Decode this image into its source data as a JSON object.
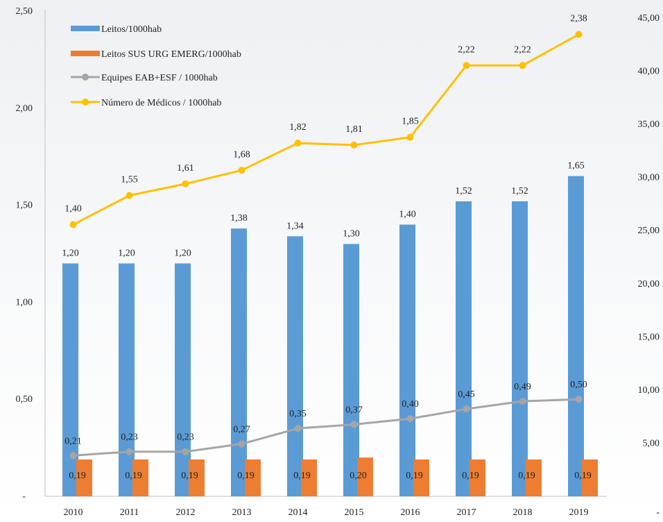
{
  "chart_data": {
    "type": "bar",
    "categories": [
      "2010",
      "2011",
      "2012",
      "2013",
      "2014",
      "2015",
      "2016",
      "2017",
      "2018",
      "2019"
    ],
    "y_left": {
      "ylim": [
        0,
        2.5
      ],
      "ticks": [
        0,
        0.5,
        1.0,
        1.5,
        2.0,
        2.5
      ],
      "tick_labels": [
        "-",
        "0,50",
        "1,00",
        "1,50",
        "2,00",
        "2,50"
      ]
    },
    "y_right": {
      "ylim": [
        0,
        45
      ],
      "ticks": [
        0,
        5,
        10,
        15,
        20,
        25,
        30,
        35,
        40,
        45
      ],
      "tick_labels": [
        "-",
        "5,00",
        "10,00",
        "15,00",
        "20,00",
        "25,00",
        "30,00",
        "35,00",
        "40,00",
        "45,00"
      ]
    },
    "series": [
      {
        "name": "Leitos/1000hab",
        "kind": "bar",
        "axis": "left",
        "color": "#5b9bd5",
        "values": [
          1.2,
          1.2,
          1.2,
          1.38,
          1.34,
          1.3,
          1.4,
          1.52,
          1.52,
          1.65
        ],
        "labels": [
          "1,20",
          "1,20",
          "1,20",
          "1,38",
          "1,34",
          "1,30",
          "1,40",
          "1,52",
          "1,52",
          "1,65"
        ]
      },
      {
        "name": "Leitos SUS URG EMERG/1000hab",
        "kind": "bar",
        "axis": "left",
        "color": "#ed7d31",
        "values": [
          0.19,
          0.19,
          0.19,
          0.19,
          0.19,
          0.2,
          0.19,
          0.19,
          0.19,
          0.19
        ],
        "labels": [
          "0,19",
          "0,19",
          "0,19",
          "0,19",
          "0,19",
          "0,20",
          "0,19",
          "0,19",
          "0,19",
          "0,19"
        ]
      },
      {
        "name": "Equipes EAB+ESF / 1000hab",
        "kind": "line",
        "axis": "left",
        "color": "#a5a5a5",
        "values": [
          0.21,
          0.23,
          0.23,
          0.27,
          0.35,
          0.37,
          0.4,
          0.45,
          0.49,
          0.5
        ],
        "labels": [
          "0,21",
          "0,23",
          "0,23",
          "0,27",
          "0,35",
          "0,37",
          "0,40",
          "0,45",
          "0,49",
          "0,50"
        ]
      },
      {
        "name": "Número de Médicos / 1000hab",
        "kind": "line",
        "axis": "left",
        "color": "#ffc000",
        "values": [
          1.4,
          1.55,
          1.61,
          1.68,
          1.82,
          1.81,
          1.85,
          2.22,
          2.22,
          2.38
        ],
        "labels": [
          "1,40",
          "1,55",
          "1,61",
          "1,68",
          "1,82",
          "1,81",
          "1,85",
          "2,22",
          "2,22",
          "2,38"
        ]
      }
    ],
    "legend_position": "top-left",
    "grid": false
  }
}
